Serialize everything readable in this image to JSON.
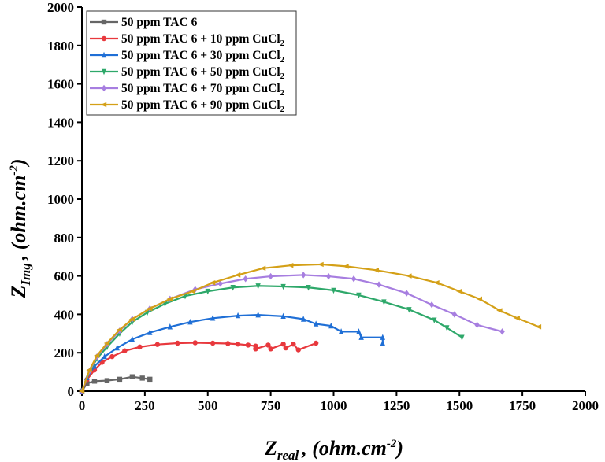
{
  "chart_data": {
    "type": "scatter",
    "xlabel": {
      "main": "Z",
      "sub": "real",
      "rest": ", (ohm.cm",
      "sup": "-2",
      "end": ")"
    },
    "ylabel": {
      "main": "Z",
      "sub": "Img",
      "rest": ", (ohm.cm",
      "sup": "-2",
      "end": ")"
    },
    "xlim": [
      0,
      2000
    ],
    "ylim": [
      0,
      2000
    ],
    "xticks": [
      0,
      250,
      500,
      750,
      1000,
      1250,
      1500,
      1750,
      2000
    ],
    "yticks": [
      0,
      200,
      400,
      600,
      800,
      1000,
      1200,
      1400,
      1600,
      1800,
      2000
    ],
    "grid": false,
    "legend_placement": "top-left",
    "series": [
      {
        "name": "50 ppm TAC 6",
        "sub": "",
        "color": "#666666",
        "marker": "square",
        "points": [
          [
            0,
            0
          ],
          [
            20,
            40
          ],
          [
            50,
            52
          ],
          [
            100,
            55
          ],
          [
            150,
            62
          ],
          [
            200,
            75
          ],
          [
            240,
            68
          ],
          [
            270,
            62
          ]
        ]
      },
      {
        "name": "50 ppm TAC 6 + 10 ppm CuCl",
        "sub": "2",
        "color": "#e8383d",
        "marker": "circle",
        "points": [
          [
            0,
            0
          ],
          [
            20,
            60
          ],
          [
            50,
            110
          ],
          [
            80,
            150
          ],
          [
            120,
            180
          ],
          [
            170,
            210
          ],
          [
            230,
            230
          ],
          [
            300,
            243
          ],
          [
            380,
            250
          ],
          [
            450,
            252
          ],
          [
            520,
            250
          ],
          [
            580,
            248
          ],
          [
            620,
            245
          ],
          [
            660,
            240
          ],
          [
            690,
            235
          ],
          [
            690,
            220
          ],
          [
            740,
            240
          ],
          [
            750,
            220
          ],
          [
            800,
            245
          ],
          [
            810,
            225
          ],
          [
            840,
            245
          ],
          [
            860,
            215
          ],
          [
            930,
            250
          ]
        ]
      },
      {
        "name": "50 ppm TAC 6 + 30 ppm CuCl",
        "sub": "2",
        "color": "#1f6fd6",
        "marker": "triangle-up",
        "points": [
          [
            0,
            0
          ],
          [
            20,
            70
          ],
          [
            50,
            130
          ],
          [
            90,
            180
          ],
          [
            140,
            225
          ],
          [
            200,
            270
          ],
          [
            270,
            305
          ],
          [
            350,
            335
          ],
          [
            430,
            360
          ],
          [
            520,
            380
          ],
          [
            620,
            393
          ],
          [
            700,
            397
          ],
          [
            800,
            390
          ],
          [
            880,
            375
          ],
          [
            930,
            350
          ],
          [
            990,
            340
          ],
          [
            1030,
            310
          ],
          [
            1100,
            310
          ],
          [
            1110,
            280
          ],
          [
            1195,
            280
          ],
          [
            1195,
            250
          ]
        ]
      },
      {
        "name": "50 ppm TAC 6 + 50 ppm CuCl",
        "sub": "2",
        "color": "#2ea86a",
        "marker": "triangle-down",
        "points": [
          [
            0,
            0
          ],
          [
            30,
            100
          ],
          [
            60,
            170
          ],
          [
            100,
            230
          ],
          [
            150,
            300
          ],
          [
            200,
            360
          ],
          [
            260,
            410
          ],
          [
            330,
            455
          ],
          [
            410,
            495
          ],
          [
            500,
            520
          ],
          [
            600,
            540
          ],
          [
            700,
            548
          ],
          [
            800,
            545
          ],
          [
            900,
            540
          ],
          [
            1000,
            525
          ],
          [
            1100,
            500
          ],
          [
            1200,
            465
          ],
          [
            1300,
            425
          ],
          [
            1400,
            370
          ],
          [
            1450,
            330
          ],
          [
            1510,
            280
          ]
        ]
      },
      {
        "name": "50 ppm TAC 6 + 70 ppm CuCl",
        "sub": "2",
        "color": "#a77ee0",
        "marker": "diamond",
        "points": [
          [
            0,
            0
          ],
          [
            30,
            105
          ],
          [
            60,
            180
          ],
          [
            100,
            245
          ],
          [
            150,
            315
          ],
          [
            200,
            375
          ],
          [
            270,
            430
          ],
          [
            350,
            480
          ],
          [
            450,
            530
          ],
          [
            550,
            560
          ],
          [
            650,
            585
          ],
          [
            750,
            598
          ],
          [
            880,
            605
          ],
          [
            980,
            598
          ],
          [
            1080,
            585
          ],
          [
            1180,
            555
          ],
          [
            1290,
            510
          ],
          [
            1390,
            450
          ],
          [
            1480,
            400
          ],
          [
            1570,
            345
          ],
          [
            1670,
            310
          ]
        ]
      },
      {
        "name": "50 ppm TAC 6 + 90 ppm CuCl",
        "sub": "2",
        "color": "#d4a017",
        "marker": "triangle-left",
        "points": [
          [
            0,
            0
          ],
          [
            30,
            110
          ],
          [
            60,
            185
          ],
          [
            100,
            250
          ],
          [
            150,
            320
          ],
          [
            200,
            375
          ],
          [
            270,
            430
          ],
          [
            350,
            480
          ],
          [
            440,
            520
          ],
          [
            520,
            565
          ],
          [
            620,
            605
          ],
          [
            720,
            640
          ],
          [
            830,
            655
          ],
          [
            950,
            660
          ],
          [
            1050,
            650
          ],
          [
            1170,
            630
          ],
          [
            1300,
            600
          ],
          [
            1410,
            565
          ],
          [
            1500,
            520
          ],
          [
            1580,
            480
          ],
          [
            1660,
            420
          ],
          [
            1730,
            380
          ],
          [
            1815,
            335
          ]
        ]
      }
    ]
  }
}
